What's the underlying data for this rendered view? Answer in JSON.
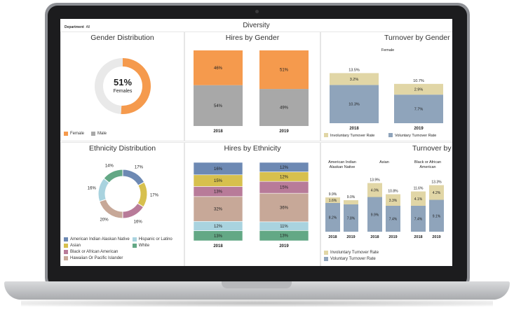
{
  "dashboard": {
    "title": "Diversity",
    "filter_label": "Department",
    "filter_value": "All"
  },
  "colors": {
    "female": "#f59a4d",
    "male": "#a8a8a8",
    "involuntary": "#e1d6a6",
    "voluntary": "#8fa4bb",
    "american_indian": "#6d89b3",
    "asian": "#d7c04e",
    "black": "#b87b99",
    "hawaiian": "#c7a898",
    "hispanic": "#a9d3df",
    "white": "#63a885"
  },
  "gender_distribution": {
    "title": "Gender Distribution",
    "center_value": "51%",
    "center_label": "Females",
    "legend": [
      "Female",
      "Male"
    ],
    "chart_data": {
      "type": "pie",
      "labels": [
        "Female",
        "Male"
      ],
      "values": [
        51,
        49
      ]
    }
  },
  "hires_by_gender": {
    "title": "Hires by Gender",
    "chart_data": {
      "type": "bar",
      "categories": [
        "2018",
        "2019"
      ],
      "series": [
        {
          "name": "Male",
          "values": [
            54,
            49
          ],
          "labels": [
            "54%",
            "49%"
          ]
        },
        {
          "name": "Female",
          "values": [
            46,
            51
          ],
          "labels": [
            "46%",
            "51%"
          ]
        }
      ]
    }
  },
  "turnover_gender": {
    "title": "Turnover by Gender",
    "facet": "Female",
    "legend": [
      "Involuntary Turnover Rate",
      "Voluntary Turnover Rate"
    ],
    "chart_data": {
      "type": "bar",
      "categories": [
        "2018",
        "2019"
      ],
      "totals": [
        "13.5%",
        "10.7%"
      ],
      "series": [
        {
          "name": "Voluntary Turnover Rate",
          "values": [
            10.3,
            7.7
          ],
          "labels": [
            "10.3%",
            "7.7%"
          ]
        },
        {
          "name": "Involuntary Turnover Rate",
          "values": [
            3.2,
            2.9
          ],
          "labels": [
            "3.2%",
            "2.9%"
          ]
        }
      ]
    }
  },
  "ethnicity_distribution": {
    "title": "Ethnicity Distribution",
    "legend_left": [
      "American Indian Alaskan Native",
      "Asian",
      "Black or African American",
      "Hawaiian Or Pacific Islander"
    ],
    "legend_right": [
      "Hispanic or Latino",
      "White"
    ],
    "chart_data": {
      "type": "pie",
      "labels": [
        "American Indian Alaskan Native",
        "Asian",
        "Black or African American",
        "Hawaiian Or Pacific Islander",
        "Hispanic or Latino",
        "White"
      ],
      "values": [
        17,
        17,
        16,
        20,
        16,
        14
      ],
      "value_labels": [
        "17%",
        "17%",
        "16%",
        "20%",
        "16%",
        "14%"
      ]
    }
  },
  "hires_by_ethnicity": {
    "title": "Hires by Ethnicity",
    "chart_data": {
      "type": "bar",
      "categories": [
        "2018",
        "2019"
      ],
      "series": [
        {
          "name": "White",
          "values": [
            13,
            13
          ],
          "labels": [
            "13%",
            "13%"
          ]
        },
        {
          "name": "Hispanic or Latino",
          "values": [
            12,
            11
          ],
          "labels": [
            "12%",
            "11%"
          ]
        },
        {
          "name": "Hawaiian Or Pacific Islander",
          "values": [
            32,
            36
          ],
          "labels": [
            "32%",
            "36%"
          ]
        },
        {
          "name": "Black or African American",
          "values": [
            13,
            15
          ],
          "labels": [
            "13%",
            "15%"
          ]
        },
        {
          "name": "Asian",
          "values": [
            15,
            12
          ],
          "labels": [
            "15%",
            "12%"
          ]
        },
        {
          "name": "American Indian Alaskan Native",
          "values": [
            16,
            12
          ],
          "labels": [
            "16%",
            "12%"
          ]
        }
      ]
    }
  },
  "turnover_ethnicity": {
    "title": "Turnover by Ethnicity",
    "legend": [
      "Involuntary Turnover Rate",
      "Voluntary Turnover Rate"
    ],
    "chart_data": {
      "type": "bar",
      "groups": [
        {
          "name": "American Indian Alaskan Native",
          "categories": [
            "2018",
            "2019"
          ],
          "voluntary": [
            8.2,
            7.8
          ],
          "involuntary": [
            1.6,
            1.2
          ],
          "totals": [
            "9.9%",
            "9.0%"
          ],
          "vol_labels": [
            "8.2%",
            "7.8%"
          ],
          "inv_labels": [
            "1.6%",
            ""
          ]
        },
        {
          "name": "Asian",
          "categories": [
            "2018",
            "2019"
          ],
          "voluntary": [
            9.9,
            7.4
          ],
          "involuntary": [
            4.0,
            3.3
          ],
          "totals": [
            "13.9%",
            "10.8%"
          ],
          "vol_labels": [
            "9.9%",
            "7.4%"
          ],
          "inv_labels": [
            "4.0%",
            "3.3%"
          ]
        },
        {
          "name": "Black or African American",
          "categories": [
            "2018",
            "2019"
          ],
          "voluntary": [
            7.4,
            9.1
          ],
          "involuntary": [
            4.1,
            4.2
          ],
          "totals": [
            "11.6%",
            "13.3%"
          ],
          "vol_labels": [
            "7.4%",
            "9.1%"
          ],
          "inv_labels": [
            "4.1%",
            "4.2%"
          ]
        }
      ]
    }
  }
}
